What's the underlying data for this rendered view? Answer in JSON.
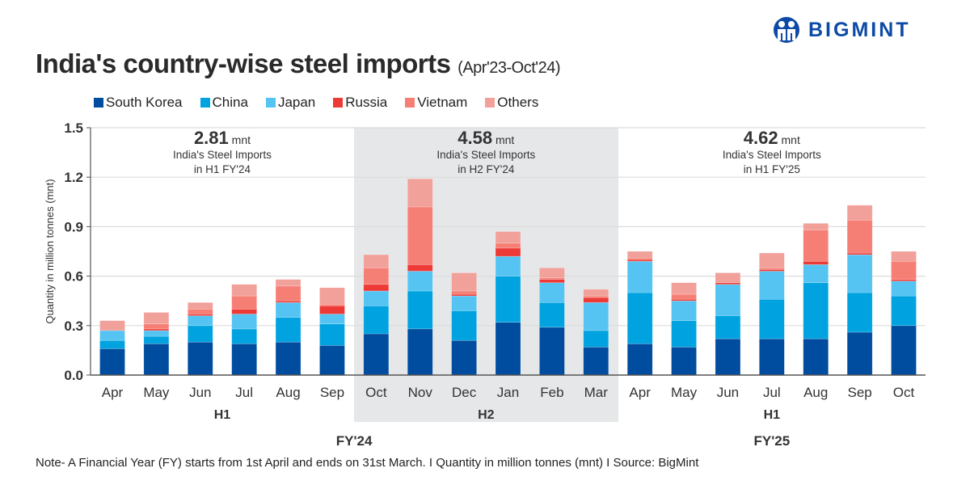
{
  "title": "India's country-wise steel imports",
  "subtitle": "(Apr'23-Oct'24)",
  "logo": {
    "text": "BIGMINT",
    "icon": "bigmint-people-logo-icon",
    "color": "#0d4aa6"
  },
  "note": "Note- A Financial Year (FY) starts from 1st April and ends on 31st March.  I  Quantity in million tonnes (mnt)  I  Source: BigMint",
  "chart_data": {
    "type": "bar",
    "stacked": true,
    "ylabel": "Quantity in million tonnes (mnt)",
    "ylim": [
      0,
      1.5
    ],
    "yticks": [
      "0.0",
      "0.3",
      "0.6",
      "0.9",
      "1.2",
      "1.5"
    ],
    "grid": true,
    "legend_position": "top-left",
    "categories": [
      "Apr",
      "May",
      "Jun",
      "Jul",
      "Aug",
      "Sep",
      "Oct",
      "Nov",
      "Dec",
      "Jan",
      "Feb",
      "Mar",
      "Apr",
      "May",
      "Jun",
      "Jul",
      "Aug",
      "Sep",
      "Oct"
    ],
    "series": [
      {
        "name": "South Korea",
        "color": "#004c9e",
        "values": [
          0.16,
          0.19,
          0.2,
          0.19,
          0.2,
          0.18,
          0.25,
          0.28,
          0.21,
          0.32,
          0.29,
          0.17,
          0.19,
          0.17,
          0.22,
          0.22,
          0.22,
          0.26,
          0.3
        ]
      },
      {
        "name": "China",
        "color": "#00a3e0",
        "values": [
          0.05,
          0.045,
          0.1,
          0.09,
          0.15,
          0.13,
          0.17,
          0.23,
          0.18,
          0.28,
          0.15,
          0.1,
          0.31,
          0.16,
          0.14,
          0.24,
          0.34,
          0.24,
          0.18
        ]
      },
      {
        "name": "Japan",
        "color": "#55c4f2",
        "values": [
          0.06,
          0.035,
          0.06,
          0.09,
          0.09,
          0.06,
          0.09,
          0.12,
          0.09,
          0.12,
          0.12,
          0.17,
          0.19,
          0.12,
          0.19,
          0.17,
          0.11,
          0.23,
          0.09
        ]
      },
      {
        "name": "Russia",
        "color": "#ee3a36",
        "values": [
          0.0,
          0.01,
          0.01,
          0.03,
          0.01,
          0.05,
          0.04,
          0.04,
          0.01,
          0.05,
          0.02,
          0.03,
          0.01,
          0.01,
          0.01,
          0.01,
          0.02,
          0.01,
          0.01
        ]
      },
      {
        "name": "Vietnam",
        "color": "#f67f75",
        "values": [
          0.0,
          0.03,
          0.03,
          0.08,
          0.09,
          0.01,
          0.1,
          0.35,
          0.02,
          0.03,
          0.01,
          0.01,
          0.01,
          0.03,
          0.0,
          0.01,
          0.19,
          0.2,
          0.11
        ]
      },
      {
        "name": "Others",
        "color": "#f1a09a",
        "values": [
          0.06,
          0.07,
          0.04,
          0.07,
          0.04,
          0.1,
          0.08,
          0.17,
          0.11,
          0.07,
          0.06,
          0.04,
          0.04,
          0.07,
          0.06,
          0.09,
          0.04,
          0.09,
          0.06
        ]
      }
    ],
    "halves": [
      {
        "label": "H1",
        "fy": "FY'24",
        "total": "2.81",
        "unit": "mnt",
        "line1": "India's Steel Imports",
        "line2": "in H1 FY'24",
        "shaded": false
      },
      {
        "label": "H2",
        "fy": "FY'24",
        "total": "4.58",
        "unit": "mnt",
        "line1": "India's Steel Imports",
        "line2": "in H2 FY'24",
        "shaded": true
      },
      {
        "label": "H1",
        "fy": "FY'25",
        "total": "4.62",
        "unit": "mnt",
        "line1": "India's Steel Imports",
        "line2": "in H1 FY'25",
        "shaded": false
      }
    ],
    "fiscal_years": [
      "FY'24",
      "FY'25"
    ],
    "shade_color": "#e6e7e9"
  }
}
